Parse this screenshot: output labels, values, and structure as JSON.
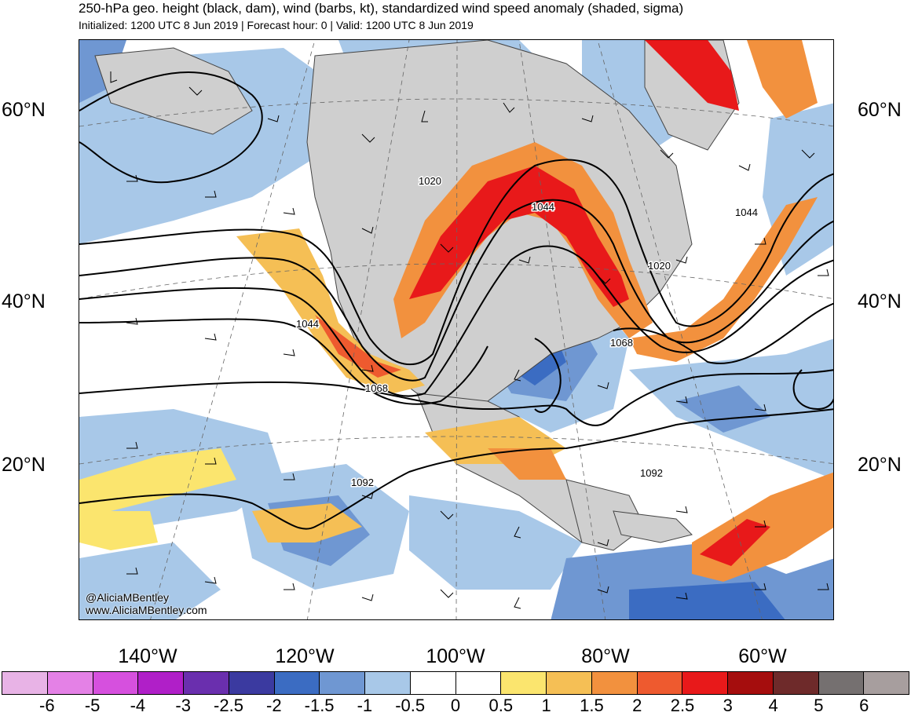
{
  "title": "250-hPa geo. height (black, dam), wind (barbs, kt), standardized wind speed anomaly (shaded, sigma)",
  "subtitle": "Initialized: 1200 UTC 8 Jun 2019 | Forecast hour: 0 | Valid: 1200 UTC 8 Jun 2019",
  "lat_labels": [
    "60°N",
    "40°N",
    "20°N"
  ],
  "lon_labels": [
    "140°W",
    "120°W",
    "100°W",
    "80°W",
    "60°W"
  ],
  "contour_labels": [
    "1020",
    "1044",
    "1044",
    "1020",
    "1044",
    "1068",
    "1068",
    "1092",
    "1092"
  ],
  "credit": {
    "handle": "@AliciaMBentley",
    "site": "www.AliciaMBentley.com"
  },
  "colorbar": {
    "ticks": [
      "-6",
      "-5",
      "-4",
      "-3",
      "-2.5",
      "-2",
      "-1.5",
      "-1",
      "-0.5",
      "0",
      "0.5",
      "1",
      "1.5",
      "2",
      "2.5",
      "3",
      "4",
      "5",
      "6"
    ],
    "colors": [
      "#e8b3e6",
      "#e481e6",
      "#d650de",
      "#b01fc8",
      "#6a2fae",
      "#3b3aa0",
      "#3b6cc2",
      "#6f97d2",
      "#a8c8e8",
      "#ffffff",
      "#ffffff",
      "#fbe56e",
      "#f5bf55",
      "#f2913e",
      "#ee5a2f",
      "#e8191a",
      "#a50d0d",
      "#6e2a2a",
      "#757070",
      "#a79e9e"
    ]
  },
  "colors": {
    "land": "#cfcfcf",
    "coast": "#444444",
    "contour": "#000000"
  }
}
